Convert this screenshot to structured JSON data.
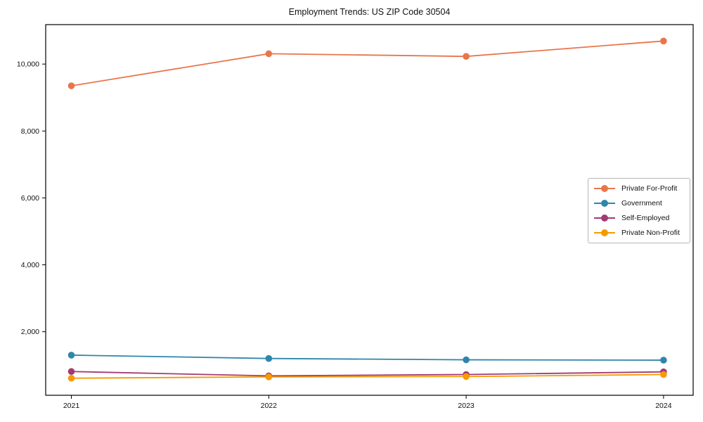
{
  "chart_data": {
    "type": "line",
    "title": "Employment Trends: US ZIP Code 30504",
    "xlabel": "",
    "ylabel": "",
    "grid": false,
    "legend_position": "center right",
    "x": [
      2021,
      2022,
      2023,
      2024
    ],
    "x_tick_labels": [
      "2021",
      "2022",
      "2023",
      "2024"
    ],
    "y_ticks": [
      {
        "value": 2000,
        "label": "2,000"
      },
      {
        "value": 4000,
        "label": "4,000"
      },
      {
        "value": 6000,
        "label": "6,000"
      },
      {
        "value": 8000,
        "label": "8,000"
      },
      {
        "value": 10000,
        "label": "10,000"
      }
    ],
    "xlim": [
      2020.87,
      2024.15
    ],
    "ylim": [
      100,
      11180
    ],
    "series": [
      {
        "name": "Private For-Profit",
        "color": "#E8764B",
        "values": [
          9350,
          10310,
          10230,
          10690
        ]
      },
      {
        "name": "Government",
        "color": "#2E86AB",
        "values": [
          1300,
          1200,
          1160,
          1150
        ]
      },
      {
        "name": "Self-Employed",
        "color": "#A23B72",
        "values": [
          810,
          680,
          720,
          800
        ]
      },
      {
        "name": "Private Non-Profit",
        "color": "#F59B00",
        "values": [
          610,
          650,
          660,
          720
        ]
      }
    ]
  }
}
